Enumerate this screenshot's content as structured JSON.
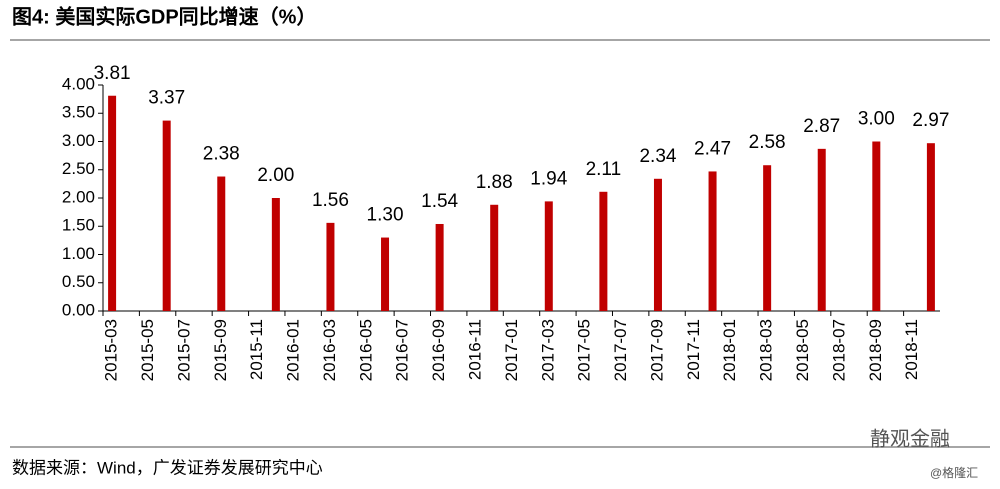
{
  "chart_data": {
    "type": "bar",
    "title": "图4:  美国实际GDP同比增速（%）",
    "source": "数据来源：Wind，广发证券发展研究中心",
    "watermark": "静观金融",
    "credit": "@格隆汇",
    "categories": [
      "2015-03",
      null,
      "2015-05",
      null,
      "2015-07",
      null,
      "2015-09",
      null,
      "2015-11",
      null,
      "2016-01",
      null,
      "2016-03",
      null,
      "2016-05",
      null,
      "2016-07",
      null,
      "2016-09",
      null,
      "2016-11",
      null,
      "2017-01",
      null,
      "2017-03",
      null,
      "2017-05",
      null,
      "2017-07",
      null,
      "2017-09",
      null,
      "2017-11",
      null,
      "2018-01",
      null,
      "2018-03",
      null,
      "2018-05",
      null,
      "2018-07",
      null,
      "2018-09",
      null,
      "2018-11",
      null
    ],
    "values": [
      3.81,
      null,
      null,
      3.37,
      null,
      null,
      2.38,
      null,
      null,
      2,
      null,
      null,
      1.56,
      null,
      null,
      1.3,
      null,
      null,
      1.54,
      null,
      null,
      1.88,
      null,
      null,
      1.94,
      null,
      null,
      2.11,
      null,
      null,
      2.34,
      null,
      null,
      2.47,
      null,
      null,
      2.58,
      null,
      null,
      2.87,
      null,
      null,
      3,
      null,
      null,
      2.97
    ],
    "value_labels": [
      "3.81",
      null,
      null,
      "3.37",
      null,
      null,
      "2.38",
      null,
      null,
      "2.00",
      null,
      null,
      "1.56",
      null,
      null,
      "1.30",
      null,
      null,
      "1.54",
      null,
      null,
      "1.88",
      null,
      null,
      "1.94",
      null,
      null,
      "2.11",
      null,
      null,
      "2.34",
      null,
      null,
      "2.47",
      null,
      null,
      "2.58",
      null,
      null,
      "2.87",
      null,
      null,
      "3.00",
      null,
      null,
      "2.97"
    ],
    "color": "#c00000",
    "ylim": [
      0,
      4
    ],
    "yticks": [
      {
        "value": 0,
        "label": "0.00"
      },
      {
        "value": 0.5,
        "label": "0.50"
      },
      {
        "value": 1,
        "label": "1.00"
      },
      {
        "value": 1.5,
        "label": "1.50"
      },
      {
        "value": 2,
        "label": "2.00"
      },
      {
        "value": 2.5,
        "label": "2.50"
      },
      {
        "value": 3,
        "label": "3.00"
      },
      {
        "value": 3.5,
        "label": "3.50"
      },
      {
        "value": 4,
        "label": "4.00"
      }
    ],
    "grid": false
  }
}
